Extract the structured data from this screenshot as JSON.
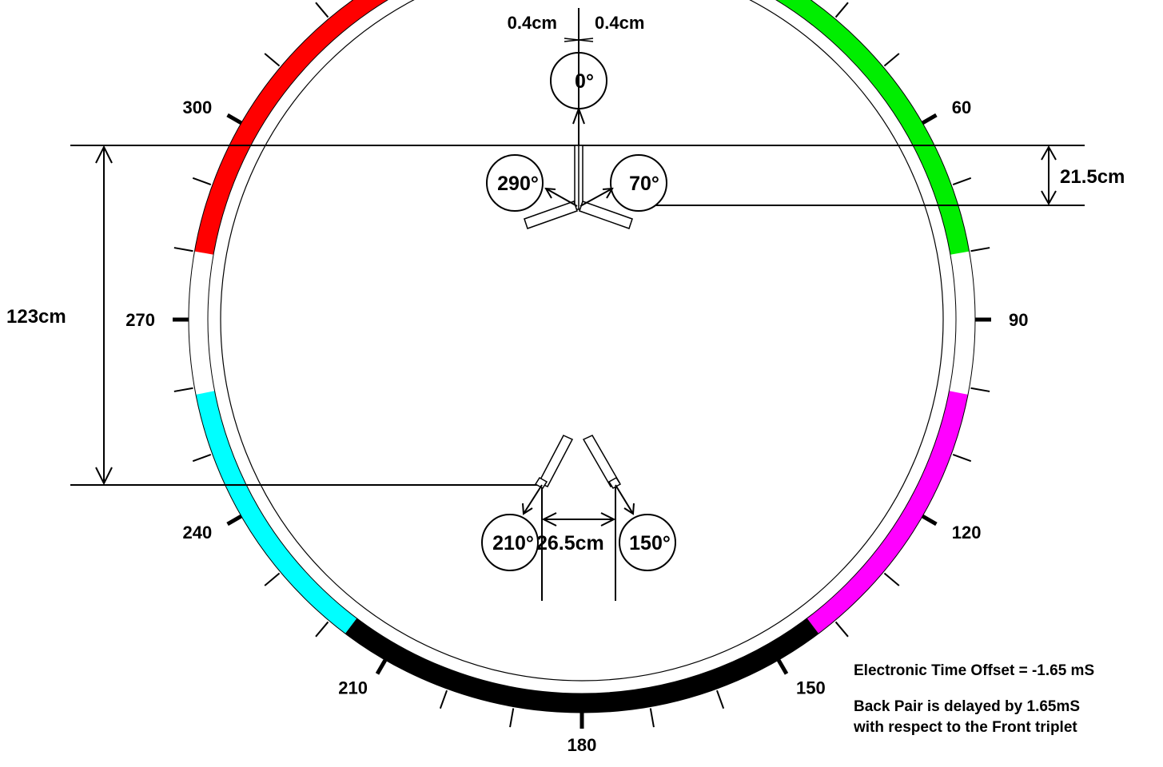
{
  "diagram": {
    "angle_labels": [
      {
        "angle": 60,
        "text": "60"
      },
      {
        "angle": 90,
        "text": "90"
      },
      {
        "angle": 120,
        "text": "120"
      },
      {
        "angle": 150,
        "text": "150"
      },
      {
        "angle": 180,
        "text": "180"
      },
      {
        "angle": 210,
        "text": "210"
      },
      {
        "angle": 240,
        "text": "240"
      },
      {
        "angle": 270,
        "text": "270"
      },
      {
        "angle": 300,
        "text": "300"
      }
    ],
    "arc_segments": [
      {
        "from": 280,
        "to": 360,
        "color": "#ff0000"
      },
      {
        "from": 0,
        "to": 80,
        "color": "#00ee00"
      },
      {
        "from": 101,
        "to": 143,
        "color": "#ff00ff"
      },
      {
        "from": 143,
        "to": 217,
        "color": "#000000"
      },
      {
        "from": 217,
        "to": 259,
        "color": "#00ffff"
      }
    ],
    "mic_labels": {
      "front_center": "0°",
      "front_left": "290°",
      "front_right": "70°",
      "back_left": "210°",
      "back_right": "150°"
    },
    "measurements": {
      "offset_left": "0.4cm",
      "offset_right": "0.4cm",
      "front_depth": "21.5cm",
      "total_depth": "123cm",
      "back_spacing": "26.5cm"
    },
    "notes": {
      "time_offset": "Electronic Time Offset = -1.65 mS",
      "delay_line1": "Back Pair is delayed by 1.65mS",
      "delay_line2": "with respect to the Front triplet"
    }
  }
}
